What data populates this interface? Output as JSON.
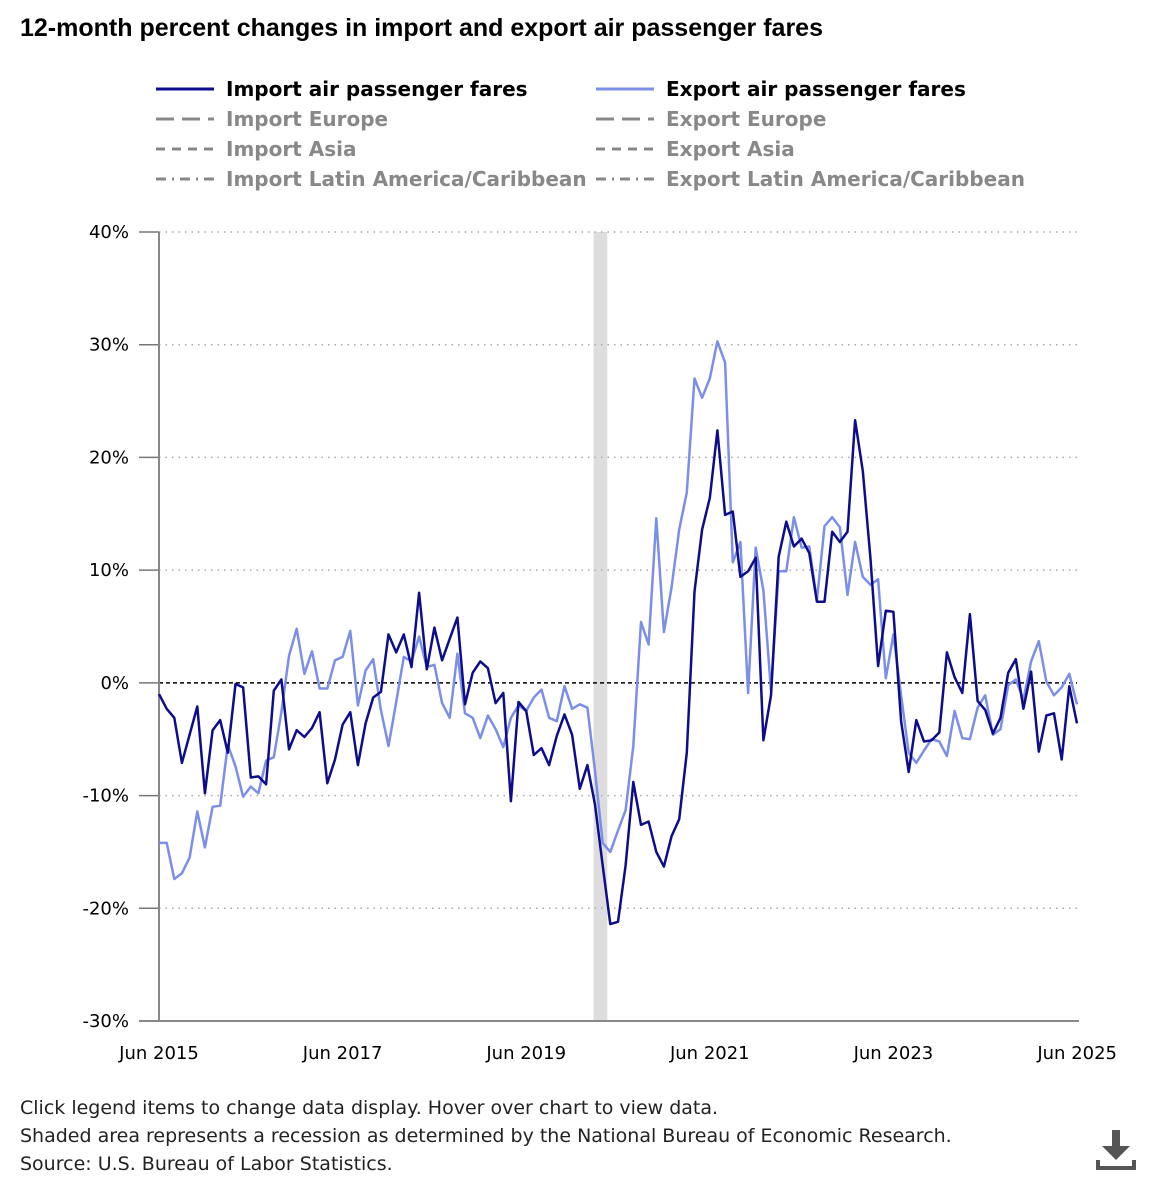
{
  "title": "12-month percent changes in import and export air passenger fares",
  "legend": [
    {
      "label": "Import air passenger fares",
      "color": "#0d0d8c",
      "dash": "solid",
      "active": true
    },
    {
      "label": "Export air passenger fares",
      "color": "#7b8fe8",
      "dash": "solid",
      "active": true
    },
    {
      "label": "Import Europe",
      "color": "#888888",
      "dash": "long-dash",
      "active": false
    },
    {
      "label": "Export Europe",
      "color": "#888888",
      "dash": "long-dash",
      "active": false
    },
    {
      "label": "Import Asia",
      "color": "#888888",
      "dash": "dash",
      "active": false
    },
    {
      "label": "Export Asia",
      "color": "#888888",
      "dash": "dash",
      "active": false
    },
    {
      "label": "Import Latin America/Caribbean",
      "color": "#888888",
      "dash": "dash-dot",
      "active": false
    },
    {
      "label": "Export Latin America/Caribbean",
      "color": "#888888",
      "dash": "dash-dot",
      "active": false
    }
  ],
  "chart_data": {
    "type": "line",
    "title": "12-month percent changes in import and export air passenger fares",
    "x_start": "Jun 2015",
    "x_end": "Jun 2025",
    "x_unit": "month index (0 = Jun 2015)",
    "xlim": [
      0,
      120
    ],
    "x_ticks": [
      {
        "label": "Jun 2015",
        "x": 0
      },
      {
        "label": "Jun 2017",
        "x": 24
      },
      {
        "label": "Jun 2019",
        "x": 48
      },
      {
        "label": "Jun 2021",
        "x": 72
      },
      {
        "label": "Jun 2023",
        "x": 96
      },
      {
        "label": "Jun 2025",
        "x": 120
      }
    ],
    "ylim": [
      -30,
      40
    ],
    "y_ticks": [
      {
        "label": "40%",
        "v": 40
      },
      {
        "label": "30%",
        "v": 30
      },
      {
        "label": "20%",
        "v": 20
      },
      {
        "label": "10%",
        "v": 10
      },
      {
        "label": "0%",
        "v": 0
      },
      {
        "label": "-10%",
        "v": -10
      },
      {
        "label": "-20%",
        "v": -20
      },
      {
        "label": "-30%",
        "v": -30
      }
    ],
    "recession": {
      "from": 56.8,
      "to": 58.6,
      "label": "Recession"
    },
    "series": [
      {
        "name": "Import air passenger fares",
        "color": "#0d0d8c",
        "values": [
          -1.0,
          -2.3,
          -3.1,
          -7.1,
          -4.6,
          -2.1,
          -9.8,
          -4.2,
          -3.3,
          -6.2,
          -0.1,
          -0.4,
          -8.4,
          -8.3,
          -9.0,
          -0.7,
          0.3,
          -5.9,
          -4.2,
          -4.8,
          -4.0,
          -2.6,
          -8.9,
          -6.8,
          -3.7,
          -2.6,
          -7.3,
          -3.6,
          -1.3,
          -0.8,
          4.3,
          2.7,
          4.3,
          1.4,
          8.0,
          1.2,
          4.9,
          2.0,
          3.9,
          5.8,
          -1.9,
          0.9,
          1.9,
          1.3,
          -1.8,
          -0.9,
          -10.5,
          -1.7,
          -2.5,
          -6.4,
          -5.8,
          -7.3,
          -4.7,
          -2.8,
          -4.6,
          -9.4,
          -7.3,
          -10.8,
          -16.2,
          -21.4,
          -21.2,
          -16.2,
          -8.8,
          -12.6,
          -12.3,
          -15.0,
          -16.3,
          -13.6,
          -12.1,
          -6.2,
          8.1,
          13.6,
          16.4,
          22.4,
          14.9,
          15.2,
          9.4,
          9.9,
          11.1,
          -5.1,
          -1.1,
          11.2,
          14.3,
          12.1,
          12.8,
          11.5,
          7.2,
          7.2,
          13.4,
          12.5,
          13.4,
          23.3,
          18.8,
          11.0,
          1.5,
          6.4,
          6.3,
          -3.4,
          -7.9,
          -3.3,
          -5.2,
          -5.1,
          -4.4,
          2.7,
          0.5,
          -0.9,
          6.1,
          -1.6,
          -2.4,
          -4.5,
          -3.1,
          0.9,
          2.1,
          -2.3,
          1.0,
          -6.1,
          -2.9,
          -2.7,
          -6.8,
          -0.3,
          -3.6
        ]
      },
      {
        "name": "Export air passenger fares",
        "color": "#7b8fe8",
        "values": [
          -14.2,
          -14.2,
          -17.4,
          -16.9,
          -15.5,
          -11.4,
          -14.6,
          -11.0,
          -10.9,
          -5.5,
          -7.4,
          -10.1,
          -9.2,
          -9.8,
          -6.9,
          -6.6,
          -2.6,
          2.4,
          4.8,
          0.8,
          2.8,
          -0.5,
          -0.5,
          2.0,
          2.3,
          4.6,
          -2.0,
          1.1,
          2.1,
          -2.4,
          -5.6,
          -1.7,
          2.3,
          1.9,
          4.1,
          1.4,
          1.6,
          -1.8,
          -3.1,
          2.6,
          -2.7,
          -3.1,
          -4.9,
          -2.9,
          -4.1,
          -5.7,
          -3.1,
          -2.0,
          -2.5,
          -1.3,
          -0.6,
          -3.1,
          -3.4,
          -0.3,
          -2.3,
          -1.9,
          -2.2,
          -7.8,
          -14.2,
          -15.0,
          -13.1,
          -11.3,
          -5.6,
          5.4,
          3.4,
          14.6,
          4.5,
          8.5,
          13.6,
          16.9,
          27.0,
          25.3,
          27.0,
          30.3,
          28.4,
          10.7,
          12.5,
          -0.9,
          12.0,
          8.2,
          -0.7,
          9.9,
          9.9,
          14.7,
          12.0,
          12.1,
          7.3,
          13.9,
          14.7,
          13.8,
          7.8,
          12.5,
          9.4,
          8.7,
          9.2,
          0.4,
          4.3,
          -1.1,
          -6.2,
          -7.1,
          -6.0,
          -5.0,
          -5.2,
          -6.5,
          -2.5,
          -4.9,
          -5.0,
          -2.2,
          -1.1,
          -4.6,
          -4.1,
          -0.2,
          0.3,
          -1.5,
          1.9,
          3.7,
          0.1,
          -1.1,
          -0.4,
          0.8,
          -1.9
        ]
      }
    ]
  },
  "footer": {
    "line1": "Click legend items to change data display. Hover over chart to view data.",
    "line2": "Shaded area represents a recession as determined by the National Bureau of Economic Research.",
    "line3": "Source: U.S. Bureau of Labor Statistics."
  },
  "download": {
    "icon": "download-icon"
  }
}
